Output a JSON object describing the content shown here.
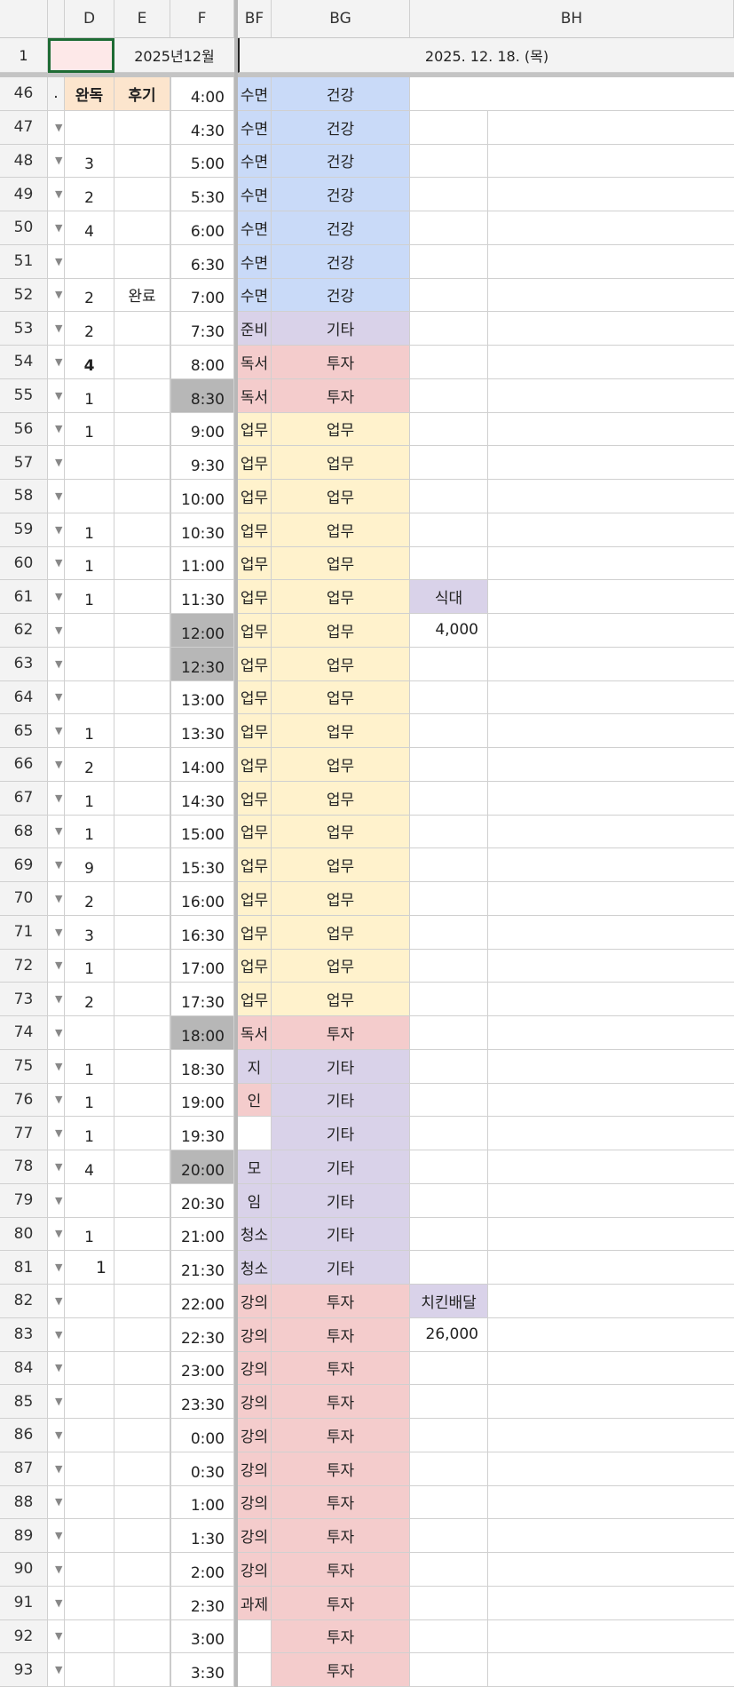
{
  "columns": {
    "row_header": "",
    "C": "",
    "D": "D",
    "E": "E",
    "F": "F",
    "BF": "BF",
    "BG": "BG",
    "BH": "BH"
  },
  "row1": {
    "number": "1",
    "month": "2025년12월",
    "date": "2025. 12. 18. (목)"
  },
  "colors": {
    "blue": "#c9daf8",
    "purple": "#d9d2e9",
    "pink": "#f4cccc",
    "yellow": "#fff2cc",
    "orange": "#fce5cd",
    "gray": "#b7b7b7",
    "selected_fill": "#fde8e8",
    "selected_border": "#1e6b34"
  },
  "header_row": {
    "number": "46",
    "C": ".",
    "D": "완독",
    "E": "후기",
    "F": "4:00",
    "BF": "수면",
    "BG": "건강"
  },
  "rows": [
    {
      "n": "47",
      "D": "",
      "E": "",
      "F": "4:30",
      "BF": "수면",
      "BG": "건강",
      "bf": "blue",
      "bg": "blue"
    },
    {
      "n": "48",
      "D": "3",
      "E": "",
      "F": "5:00",
      "BF": "수면",
      "BG": "건강",
      "bf": "blue",
      "bg": "blue"
    },
    {
      "n": "49",
      "D": "2",
      "E": "",
      "F": "5:30",
      "BF": "수면",
      "BG": "건강",
      "bf": "blue",
      "bg": "blue"
    },
    {
      "n": "50",
      "D": "4",
      "E": "",
      "F": "6:00",
      "BF": "수면",
      "BG": "건강",
      "bf": "blue",
      "bg": "blue"
    },
    {
      "n": "51",
      "D": "",
      "E": "",
      "F": "6:30",
      "BF": "수면",
      "BG": "건강",
      "bf": "blue",
      "bg": "blue"
    },
    {
      "n": "52",
      "D": "2",
      "E": "완료",
      "F": "7:00",
      "BF": "수면",
      "BG": "건강",
      "bf": "blue",
      "bg": "blue"
    },
    {
      "n": "53",
      "D": "2",
      "E": "",
      "F": "7:30",
      "BF": "준비",
      "BG": "기타",
      "bf": "purple",
      "bg": "purple"
    },
    {
      "n": "54",
      "D": "4",
      "E": "",
      "F": "8:00",
      "BF": "독서",
      "BG": "투자",
      "bf": "pink",
      "bg": "pink"
    },
    {
      "n": "55",
      "D": "1",
      "E": "",
      "F": "8:30",
      "BF": "독서",
      "BG": "투자",
      "bf": "pink",
      "bg": "pink",
      "fgray": true
    },
    {
      "n": "56",
      "D": "1",
      "E": "",
      "F": "9:00",
      "BF": "업무",
      "BG": "업무",
      "bf": "yellow",
      "bg": "yellow"
    },
    {
      "n": "57",
      "D": "",
      "E": "",
      "F": "9:30",
      "BF": "업무",
      "BG": "업무",
      "bf": "yellow",
      "bg": "yellow"
    },
    {
      "n": "58",
      "D": "",
      "E": "",
      "F": "10:00",
      "BF": "업무",
      "BG": "업무",
      "bf": "yellow",
      "bg": "yellow"
    },
    {
      "n": "59",
      "D": "1",
      "E": "",
      "F": "10:30",
      "BF": "업무",
      "BG": "업무",
      "bf": "yellow",
      "bg": "yellow"
    },
    {
      "n": "60",
      "D": "1",
      "E": "",
      "F": "11:00",
      "BF": "업무",
      "BG": "업무",
      "bf": "yellow",
      "bg": "yellow"
    },
    {
      "n": "61",
      "D": "1",
      "E": "",
      "F": "11:30",
      "BF": "업무",
      "BG": "업무",
      "bf": "yellow",
      "bg": "yellow",
      "BH": "식대",
      "bh": "purple"
    },
    {
      "n": "62",
      "D": "",
      "E": "",
      "F": "12:00",
      "BF": "업무",
      "BG": "업무",
      "bf": "yellow",
      "bg": "yellow",
      "fgray": true,
      "BH": "4,000"
    },
    {
      "n": "63",
      "D": "",
      "E": "",
      "F": "12:30",
      "BF": "업무",
      "BG": "업무",
      "bf": "yellow",
      "bg": "yellow",
      "fgray": true
    },
    {
      "n": "64",
      "D": "",
      "E": "",
      "F": "13:00",
      "BF": "업무",
      "BG": "업무",
      "bf": "yellow",
      "bg": "yellow"
    },
    {
      "n": "65",
      "D": "1",
      "E": "",
      "F": "13:30",
      "BF": "업무",
      "BG": "업무",
      "bf": "yellow",
      "bg": "yellow"
    },
    {
      "n": "66",
      "D": "2",
      "E": "",
      "F": "14:00",
      "BF": "업무",
      "BG": "업무",
      "bf": "yellow",
      "bg": "yellow"
    },
    {
      "n": "67",
      "D": "1",
      "E": "",
      "F": "14:30",
      "BF": "업무",
      "BG": "업무",
      "bf": "yellow",
      "bg": "yellow"
    },
    {
      "n": "68",
      "D": "1",
      "E": "",
      "F": "15:00",
      "BF": "업무",
      "BG": "업무",
      "bf": "yellow",
      "bg": "yellow"
    },
    {
      "n": "69",
      "D": "9",
      "E": "",
      "F": "15:30",
      "BF": "업무",
      "BG": "업무",
      "bf": "yellow",
      "bg": "yellow"
    },
    {
      "n": "70",
      "D": "2",
      "E": "",
      "F": "16:00",
      "BF": "업무",
      "BG": "업무",
      "bf": "yellow",
      "bg": "yellow"
    },
    {
      "n": "71",
      "D": "3",
      "E": "",
      "F": "16:30",
      "BF": "업무",
      "BG": "업무",
      "bf": "yellow",
      "bg": "yellow"
    },
    {
      "n": "72",
      "D": "1",
      "E": "",
      "F": "17:00",
      "BF": "업무",
      "BG": "업무",
      "bf": "yellow",
      "bg": "yellow"
    },
    {
      "n": "73",
      "D": "2",
      "E": "",
      "F": "17:30",
      "BF": "업무",
      "BG": "업무",
      "bf": "yellow",
      "bg": "yellow"
    },
    {
      "n": "74",
      "D": "",
      "E": "",
      "F": "18:00",
      "BF": "독서",
      "BG": "투자",
      "bf": "pink",
      "bg": "pink",
      "fgray": true
    },
    {
      "n": "75",
      "D": "1",
      "E": "",
      "F": "18:30",
      "BF": "지",
      "BG": "기타",
      "bf": "purple",
      "bg": "purple"
    },
    {
      "n": "76",
      "D": "1",
      "E": "",
      "F": "19:00",
      "BF": "인",
      "BG": "기타",
      "bf": "pink",
      "bg": "purple"
    },
    {
      "n": "77",
      "D": "1",
      "E": "",
      "F": "19:30",
      "BF": "",
      "BG": "기타",
      "bf": "",
      "bg": "purple"
    },
    {
      "n": "78",
      "D": "4",
      "E": "",
      "F": "20:00",
      "BF": "모",
      "BG": "기타",
      "bf": "purple",
      "bg": "purple",
      "fgray": true
    },
    {
      "n": "79",
      "D": "",
      "E": "",
      "F": "20:30",
      "BF": "임",
      "BG": "기타",
      "bf": "purple",
      "bg": "purple"
    },
    {
      "n": "80",
      "D": "1",
      "E": "",
      "F": "21:00",
      "BF": "청소",
      "BG": "기타",
      "bf": "purple",
      "bg": "purple"
    },
    {
      "n": "81",
      "D": "1",
      "E": "",
      "F": "21:30",
      "BF": "청소",
      "BG": "기타",
      "bf": "purple",
      "bg": "purple",
      "dright": true
    },
    {
      "n": "82",
      "D": "",
      "E": "",
      "F": "22:00",
      "BF": "강의",
      "BG": "투자",
      "bf": "pink",
      "bg": "pink",
      "BH": "치킨배달",
      "bh": "purple"
    },
    {
      "n": "83",
      "D": "",
      "E": "",
      "F": "22:30",
      "BF": "강의",
      "BG": "투자",
      "bf": "pink",
      "bg": "pink",
      "BH": "26,000"
    },
    {
      "n": "84",
      "D": "",
      "E": "",
      "F": "23:00",
      "BF": "강의",
      "BG": "투자",
      "bf": "pink",
      "bg": "pink"
    },
    {
      "n": "85",
      "D": "",
      "E": "",
      "F": "23:30",
      "BF": "강의",
      "BG": "투자",
      "bf": "pink",
      "bg": "pink"
    },
    {
      "n": "86",
      "D": "",
      "E": "",
      "F": "0:00",
      "BF": "강의",
      "BG": "투자",
      "bf": "pink",
      "bg": "pink"
    },
    {
      "n": "87",
      "D": "",
      "E": "",
      "F": "0:30",
      "BF": "강의",
      "BG": "투자",
      "bf": "pink",
      "bg": "pink"
    },
    {
      "n": "88",
      "D": "",
      "E": "",
      "F": "1:00",
      "BF": "강의",
      "BG": "투자",
      "bf": "pink",
      "bg": "pink"
    },
    {
      "n": "89",
      "D": "",
      "E": "",
      "F": "1:30",
      "BF": "강의",
      "BG": "투자",
      "bf": "pink",
      "bg": "pink"
    },
    {
      "n": "90",
      "D": "",
      "E": "",
      "F": "2:00",
      "BF": "강의",
      "BG": "투자",
      "bf": "pink",
      "bg": "pink"
    },
    {
      "n": "91",
      "D": "",
      "E": "",
      "F": "2:30",
      "BF": "과제",
      "BG": "투자",
      "bf": "pink",
      "bg": "pink"
    },
    {
      "n": "92",
      "D": "",
      "E": "",
      "F": "3:00",
      "BF": "",
      "BG": "투자",
      "bf": "",
      "bg": "pink"
    },
    {
      "n": "93",
      "D": "",
      "E": "",
      "F": "3:30",
      "BF": "",
      "BG": "투자",
      "bf": "",
      "bg": "pink"
    }
  ]
}
